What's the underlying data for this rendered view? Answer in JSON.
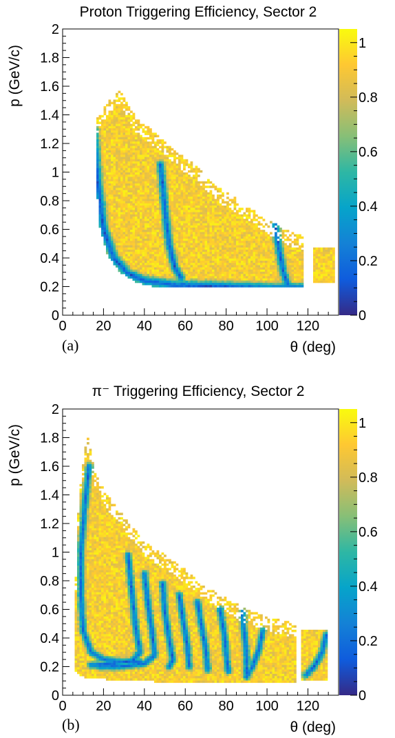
{
  "palette": [
    "#352a87",
    "#0f5cdd",
    "#1481d6",
    "#06a4ca",
    "#2eb7a4",
    "#87bf77",
    "#d1bb59",
    "#fec832",
    "#f9fb0e"
  ],
  "chart_data": [
    {
      "type": "heatmap",
      "panel_label": "(a)",
      "title": "Proton Triggering Efficiency, Sector 2",
      "xlabel": "θ (deg)",
      "ylabel": "p (GeV/c)",
      "xlim": [
        0,
        135
      ],
      "ylim": [
        0,
        2
      ],
      "x_ticks": [
        "0",
        "20",
        "40",
        "60",
        "80",
        "100",
        "120"
      ],
      "y_ticks": [
        "0",
        "0.2",
        "0.4",
        "0.6",
        "0.8",
        "1",
        "1.2",
        "1.4",
        "1.6",
        "1.8",
        "2"
      ],
      "colorbar": {
        "min": 0,
        "max": 1.05,
        "ticks": [
          "0",
          "0.2",
          "0.4",
          "0.6",
          "0.8",
          "1"
        ]
      },
      "bulk_efficiency": 0.92,
      "band_efficiency": 0.05,
      "populated_region": [
        {
          "theta": 16,
          "p_low": 1.05,
          "p_high": 1.35
        },
        {
          "theta": 18,
          "p_low": 0.62,
          "p_high": 1.4
        },
        {
          "theta": 22,
          "p_low": 0.42,
          "p_high": 1.5
        },
        {
          "theta": 28,
          "p_low": 0.3,
          "p_high": 1.58
        },
        {
          "theta": 36,
          "p_low": 0.23,
          "p_high": 1.38
        },
        {
          "theta": 45,
          "p_low": 0.2,
          "p_high": 1.28
        },
        {
          "theta": 55,
          "p_low": 0.2,
          "p_high": 1.15
        },
        {
          "theta": 65,
          "p_low": 0.2,
          "p_high": 1.05
        },
        {
          "theta": 75,
          "p_low": 0.2,
          "p_high": 0.9
        },
        {
          "theta": 85,
          "p_low": 0.2,
          "p_high": 0.82
        },
        {
          "theta": 95,
          "p_low": 0.2,
          "p_high": 0.72
        },
        {
          "theta": 105,
          "p_low": 0.2,
          "p_high": 0.63
        },
        {
          "theta": 112,
          "p_low": 0.2,
          "p_high": 0.58
        },
        {
          "theta": 118,
          "p_low": 0.2,
          "p_high": 0.55
        }
      ],
      "islands": [
        {
          "theta_min": 123,
          "theta_max": 133,
          "p_low": 0.22,
          "p_high": 0.48
        }
      ],
      "low_efficiency_bands": [
        {
          "points": [
            [
              15,
              1.3
            ],
            [
              17,
              0.95
            ],
            [
              20,
              0.6
            ],
            [
              25,
              0.4
            ],
            [
              32,
              0.29
            ],
            [
              40,
              0.24
            ],
            [
              55,
              0.21
            ],
            [
              80,
              0.2
            ],
            [
              100,
              0.19
            ],
            [
              120,
              0.19
            ]
          ],
          "width": 5
        },
        {
          "points": [
            [
              48,
              1.05
            ],
            [
              50,
              0.75
            ],
            [
              52,
              0.5
            ],
            [
              55,
              0.33
            ],
            [
              58,
              0.26
            ]
          ],
          "width": 4
        },
        {
          "points": [
            [
              104,
              0.63
            ],
            [
              106,
              0.45
            ],
            [
              108,
              0.3
            ],
            [
              110,
              0.22
            ]
          ],
          "width": 4
        }
      ]
    },
    {
      "type": "heatmap",
      "panel_label": "(b)",
      "title": "π⁻ Triggering Efficiency, Sector 2",
      "xlabel": "θ (deg)",
      "ylabel": "p (GeV/c)",
      "xlim": [
        0,
        135
      ],
      "ylim": [
        0,
        2
      ],
      "x_ticks": [
        "0",
        "20",
        "40",
        "60",
        "80",
        "100",
        "120"
      ],
      "y_ticks": [
        "0",
        "0.2",
        "0.4",
        "0.6",
        "0.8",
        "1",
        "1.2",
        "1.4",
        "1.6",
        "1.8",
        "2"
      ],
      "colorbar": {
        "min": 0,
        "max": 1.05,
        "ticks": [
          "0",
          "0.2",
          "0.4",
          "0.6",
          "0.8",
          "1"
        ]
      },
      "bulk_efficiency": 0.92,
      "band_efficiency": 0.08,
      "populated_region": [
        {
          "theta": 6,
          "p_low": 0.18,
          "p_high": 0.65
        },
        {
          "theta": 8,
          "p_low": 0.14,
          "p_high": 1.4
        },
        {
          "theta": 12,
          "p_low": 0.12,
          "p_high": 1.82
        },
        {
          "theta": 16,
          "p_low": 0.12,
          "p_high": 1.55
        },
        {
          "theta": 22,
          "p_low": 0.11,
          "p_high": 1.4
        },
        {
          "theta": 30,
          "p_low": 0.1,
          "p_high": 1.25
        },
        {
          "theta": 40,
          "p_low": 0.1,
          "p_high": 1.08
        },
        {
          "theta": 50,
          "p_low": 0.09,
          "p_high": 0.98
        },
        {
          "theta": 60,
          "p_low": 0.09,
          "p_high": 0.88
        },
        {
          "theta": 70,
          "p_low": 0.09,
          "p_high": 0.76
        },
        {
          "theta": 80,
          "p_low": 0.09,
          "p_high": 0.68
        },
        {
          "theta": 90,
          "p_low": 0.09,
          "p_high": 0.6
        },
        {
          "theta": 100,
          "p_low": 0.09,
          "p_high": 0.55
        },
        {
          "theta": 108,
          "p_low": 0.09,
          "p_high": 0.52
        },
        {
          "theta": 114,
          "p_low": 0.09,
          "p_high": 0.5
        }
      ],
      "islands": [
        {
          "theta_min": 117,
          "theta_max": 130,
          "p_low": 0.1,
          "p_high": 0.46
        }
      ],
      "low_efficiency_bands": [
        {
          "points": [
            [
              13,
              1.6
            ],
            [
              11,
              1.35
            ],
            [
              9,
              1.0
            ],
            [
              9,
              0.7
            ],
            [
              10,
              0.45
            ],
            [
              14,
              0.3
            ],
            [
              20,
              0.25
            ],
            [
              30,
              0.23
            ],
            [
              38,
              0.23
            ]
          ],
          "width": 3.5
        },
        {
          "points": [
            [
              32,
              0.98
            ],
            [
              34,
              0.7
            ],
            [
              36,
              0.45
            ],
            [
              38,
              0.3
            ],
            [
              34,
              0.24
            ],
            [
              24,
              0.22
            ],
            [
              14,
              0.21
            ]
          ],
          "width": 3.5
        },
        {
          "points": [
            [
              40,
              0.85
            ],
            [
              42,
              0.62
            ],
            [
              44,
              0.42
            ],
            [
              45,
              0.28
            ],
            [
              40,
              0.22
            ],
            [
              28,
              0.2
            ],
            [
              18,
              0.2
            ]
          ],
          "width": 3.5
        },
        {
          "points": [
            [
              49,
              0.78
            ],
            [
              50,
              0.58
            ],
            [
              52,
              0.4
            ],
            [
              54,
              0.25
            ],
            [
              52,
              0.2
            ]
          ],
          "width": 3.5
        },
        {
          "points": [
            [
              57,
              0.7
            ],
            [
              59,
              0.52
            ],
            [
              61,
              0.35
            ],
            [
              62,
              0.2
            ]
          ],
          "width": 3.5
        },
        {
          "points": [
            [
              66,
              0.65
            ],
            [
              68,
              0.48
            ],
            [
              70,
              0.32
            ],
            [
              71,
              0.18
            ]
          ],
          "width": 3.5
        },
        {
          "points": [
            [
              77,
              0.6
            ],
            [
              79,
              0.44
            ],
            [
              80,
              0.3
            ],
            [
              81,
              0.17
            ]
          ],
          "width": 3.5
        },
        {
          "points": [
            [
              88,
              0.58
            ],
            [
              89,
              0.42
            ],
            [
              90,
              0.27
            ],
            [
              90,
              0.16
            ]
          ],
          "width": 3.5
        },
        {
          "points": [
            [
              98,
              0.45
            ],
            [
              96,
              0.32
            ],
            [
              93,
              0.2
            ],
            [
              90,
              0.13
            ]
          ],
          "width": 3.5
        },
        {
          "points": [
            [
              129,
              0.42
            ],
            [
              127,
              0.3
            ],
            [
              123,
              0.2
            ],
            [
              119,
              0.14
            ]
          ],
          "width": 3.5
        }
      ]
    }
  ]
}
